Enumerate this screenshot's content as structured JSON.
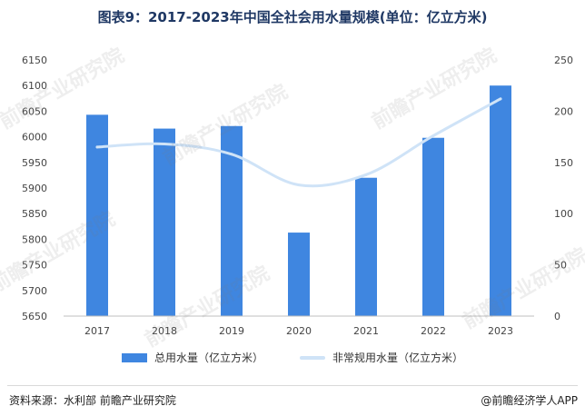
{
  "title": "图表9：2017-2023年中国全社会用水量规模(单位：亿立方米)",
  "footer": {
    "source": "资料来源：水利部 前瞻产业研究院",
    "brand": "@前瞻经济学人APP"
  },
  "watermark": "前瞻产业研究院",
  "colors": {
    "bar": "#3f86e0",
    "line": "#cfe3f7",
    "title": "#1f3864"
  },
  "chart_data": {
    "type": "bar+line",
    "categories": [
      "2017",
      "2018",
      "2019",
      "2020",
      "2021",
      "2022",
      "2023"
    ],
    "series": [
      {
        "name": "总用水量（亿立方米）",
        "type": "bar",
        "axis": "left",
        "values": [
          6043,
          6016,
          6021,
          5813,
          5920,
          5998,
          6100
        ]
      },
      {
        "name": "非常规用水量（亿立方米）",
        "type": "line",
        "axis": "right",
        "values": [
          165,
          168,
          158,
          128,
          138,
          176,
          212
        ]
      }
    ],
    "y_left": {
      "min": 5650,
      "max": 6150,
      "ticks": [
        5650,
        5700,
        5750,
        5800,
        5850,
        5900,
        5950,
        6000,
        6050,
        6100,
        6150
      ]
    },
    "y_right": {
      "min": 0,
      "max": 250,
      "ticks": [
        0,
        50,
        100,
        150,
        200,
        250
      ]
    },
    "legend_position": "bottom",
    "grid": false
  }
}
